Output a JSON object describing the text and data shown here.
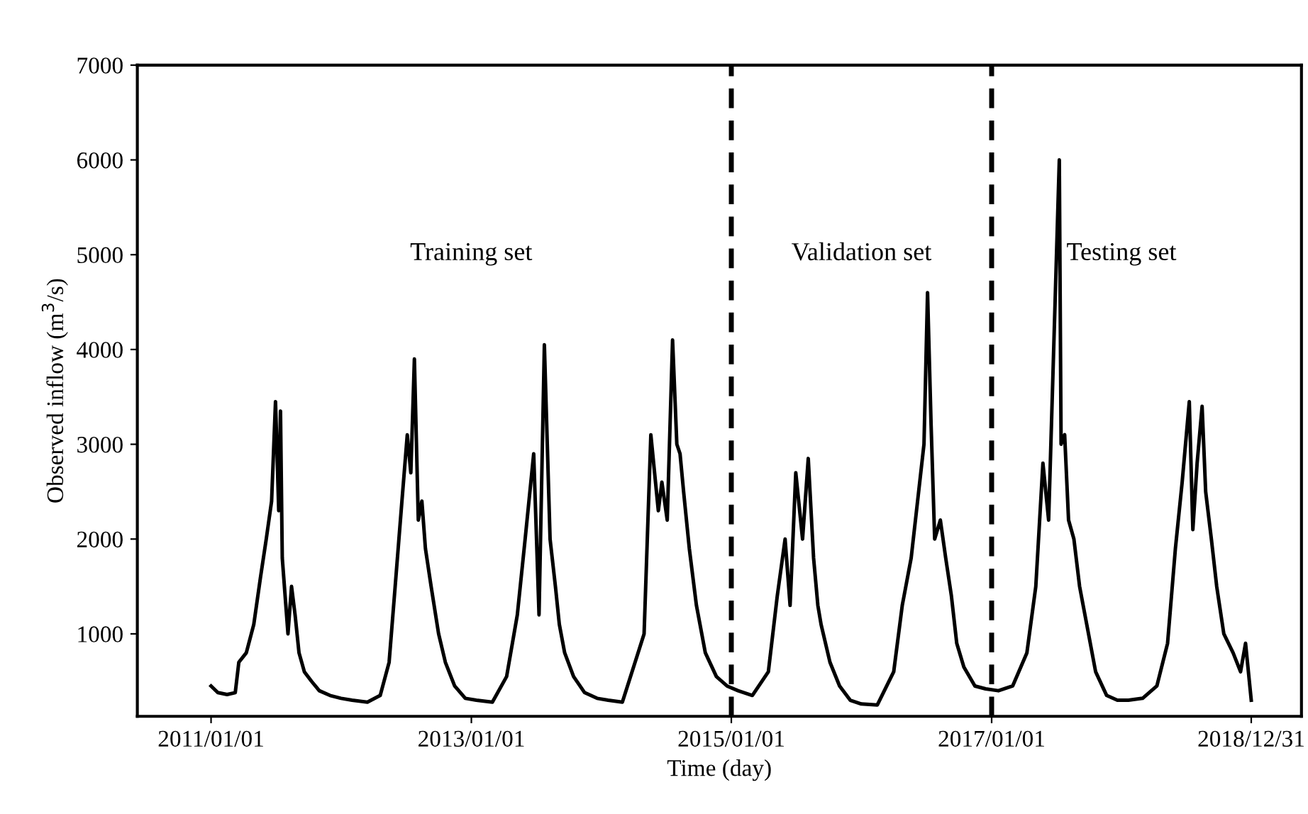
{
  "chart_data": {
    "type": "line",
    "xlabel": "Time (day)",
    "ylabel": "Observed inflow (m$^{3}$/s)",
    "x": [
      "2011-01-01",
      "2011-01-20",
      "2011-02-15",
      "2011-03-10",
      "2011-03-20",
      "2011-04-10",
      "2011-05-01",
      "2011-05-20",
      "2011-06-05",
      "2011-06-20",
      "2011-07-01",
      "2011-07-10",
      "2011-07-15",
      "2011-07-20",
      "2011-07-28",
      "2011-08-05",
      "2011-08-15",
      "2011-08-25",
      "2011-09-05",
      "2011-09-20",
      "2011-10-10",
      "2011-11-01",
      "2011-12-01",
      "2012-01-01",
      "2012-02-01",
      "2012-03-15",
      "2012-04-20",
      "2012-05-15",
      "2012-06-01",
      "2012-06-20",
      "2012-07-05",
      "2012-07-15",
      "2012-07-25",
      "2012-08-05",
      "2012-08-15",
      "2012-08-25",
      "2012-09-10",
      "2012-10-01",
      "2012-10-20",
      "2012-11-15",
      "2012-12-15",
      "2013-01-15",
      "2013-03-01",
      "2013-04-10",
      "2013-05-10",
      "2013-06-01",
      "2013-06-25",
      "2013-07-10",
      "2013-07-25",
      "2013-08-10",
      "2013-08-25",
      "2013-09-05",
      "2013-09-20",
      "2013-10-15",
      "2013-11-15",
      "2013-12-20",
      "2014-01-20",
      "2014-03-01",
      "2014-04-10",
      "2014-05-01",
      "2014-05-20",
      "2014-06-10",
      "2014-06-20",
      "2014-07-05",
      "2014-07-20",
      "2014-08-01",
      "2014-08-10",
      "2014-08-20",
      "2014-09-05",
      "2014-09-25",
      "2014-10-20",
      "2014-11-20",
      "2014-12-20",
      "2015-01-20",
      "2015-03-01",
      "2015-04-15",
      "2015-05-10",
      "2015-06-01",
      "2015-06-15",
      "2015-07-01",
      "2015-07-20",
      "2015-08-05",
      "2015-08-20",
      "2015-09-01",
      "2015-09-10",
      "2015-10-05",
      "2015-11-01",
      "2015-12-01",
      "2016-01-01",
      "2016-02-15",
      "2016-04-01",
      "2016-04-25",
      "2016-05-20",
      "2016-06-10",
      "2016-06-25",
      "2016-07-05",
      "2016-07-15",
      "2016-07-25",
      "2016-08-10",
      "2016-08-25",
      "2016-09-10",
      "2016-09-25",
      "2016-10-15",
      "2016-11-15",
      "2016-12-15",
      "2017-01-20",
      "2017-03-01",
      "2017-04-10",
      "2017-05-05",
      "2017-05-25",
      "2017-06-10",
      "2017-07-10",
      "2017-07-15",
      "2017-07-25",
      "2017-08-05",
      "2017-08-20",
      "2017-09-05",
      "2017-09-25",
      "2017-10-20",
      "2017-11-20",
      "2017-12-20",
      "2018-01-20",
      "2018-03-01",
      "2018-04-10",
      "2018-05-10",
      "2018-06-01",
      "2018-06-20",
      "2018-07-10",
      "2018-07-20",
      "2018-08-01",
      "2018-08-15",
      "2018-08-25",
      "2018-09-10",
      "2018-09-25",
      "2018-10-15",
      "2018-11-10",
      "2018-12-01",
      "2018-12-15",
      "2018-12-31"
    ],
    "series": [
      {
        "color": "#000000",
        "values": [
          450,
          380,
          360,
          380,
          700,
          800,
          1100,
          1600,
          2000,
          2400,
          3450,
          2300,
          3350,
          1800,
          1400,
          1000,
          1500,
          1200,
          800,
          600,
          500,
          400,
          350,
          320,
          300,
          280,
          350,
          700,
          1500,
          2400,
          3100,
          2700,
          3900,
          2200,
          2400,
          1900,
          1500,
          1000,
          700,
          450,
          320,
          300,
          280,
          550,
          1200,
          2000,
          2900,
          1200,
          4050,
          2000,
          1500,
          1100,
          800,
          550,
          380,
          320,
          300,
          280,
          750,
          1000,
          3100,
          2300,
          2600,
          2200,
          4100,
          3000,
          2900,
          2500,
          1900,
          1300,
          800,
          550,
          450,
          400,
          350,
          600,
          1400,
          2000,
          1300,
          2700,
          2000,
          2850,
          1800,
          1300,
          1100,
          700,
          450,
          300,
          260,
          250,
          600,
          1300,
          1800,
          2500,
          3000,
          4600,
          3200,
          2000,
          2200,
          1800,
          1400,
          900,
          650,
          450,
          420,
          400,
          450,
          800,
          1500,
          2800,
          2200,
          6000,
          3000,
          3100,
          2200,
          2000,
          1500,
          1100,
          600,
          350,
          300,
          300,
          320,
          450,
          900,
          1900,
          2600,
          3450,
          2100,
          2800,
          3400,
          2500,
          2000,
          1500,
          1000,
          800,
          600,
          900,
          300
        ]
      }
    ],
    "xlim": [
      "2010-06-08",
      "2019-05-21"
    ],
    "xticks": [
      {
        "value": "2011-01-01",
        "label": "2011/01/01"
      },
      {
        "value": "2013-01-01",
        "label": "2013/01/01"
      },
      {
        "value": "2015-01-01",
        "label": "2015/01/01"
      },
      {
        "value": "2017-01-01",
        "label": "2017/01/01"
      },
      {
        "value": "2018-12-31",
        "label": "2018/12/31"
      }
    ],
    "ylim": [
      130,
      7000
    ],
    "yticks": [
      1000,
      2000,
      3000,
      4000,
      5000,
      6000,
      7000
    ],
    "ref_lines": [
      {
        "axis": "x",
        "value": "2015-01-01",
        "color": "#000000",
        "line_style": "dashed"
      },
      {
        "axis": "x",
        "value": "2017-01-01",
        "color": "#000000",
        "line_style": "dashed"
      }
    ],
    "annotations": [
      "Training set",
      "Validation set",
      "Testing set"
    ],
    "grid": false,
    "legend": false,
    "marker": "none",
    "line_style": "solid"
  }
}
